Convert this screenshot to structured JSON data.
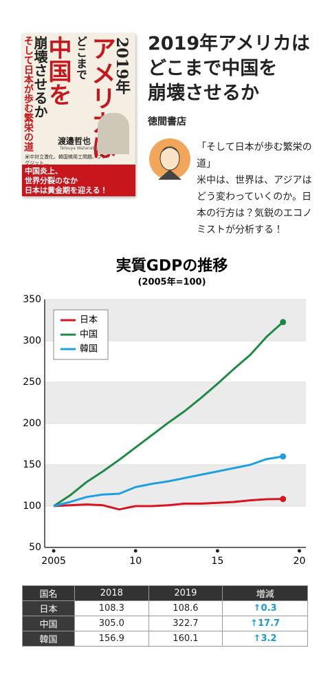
{
  "header": {
    "book": {
      "year": "2019年",
      "title_a": "アメリカは",
      "title_b": "どこまで",
      "title_c": "中国を",
      "title_d": "崩壊させるか",
      "subtitle": "そして日本が歩む繁栄の道",
      "author": "渡邉哲也",
      "author_en": "Tetsuya Watanabe",
      "points": "米中対立激化、韓国徴用工問題、ブレグジット…",
      "band_1": "中国炎上、",
      "band_2": "世界分裂のなか",
      "band_3": "日本は黄金期を迎える！"
    },
    "title_lines": [
      "2019年アメリカは",
      "どこまで中国を",
      "崩壊させるか"
    ],
    "publisher": "徳間書店",
    "quote_lines": [
      "「そして日本が歩む繁栄の道」",
      "米中は、世界は、アジアはどう変わっていくのか。日本の行方は？気鋭のエコノミストが分析する！"
    ]
  },
  "chart_data": {
    "type": "line",
    "title": "実質GDPの推移",
    "subtitle": "(2005年=100)",
    "x": [
      2005,
      2006,
      2007,
      2008,
      2009,
      2010,
      2011,
      2012,
      2013,
      2014,
      2015,
      2016,
      2017,
      2018,
      2019
    ],
    "series": [
      {
        "name": "日本",
        "color": "#d7141f",
        "values": [
          100,
          101,
          102,
          101,
          96,
          100,
          100,
          101,
          103,
          103,
          104,
          105,
          107,
          108.3,
          108.6
        ]
      },
      {
        "name": "中国",
        "color": "#1e8a45",
        "values": [
          100,
          113,
          129,
          142,
          156,
          171,
          186,
          201,
          215,
          231,
          248,
          266,
          283,
          305.0,
          322.7
        ]
      },
      {
        "name": "韓国",
        "color": "#1ca0e0",
        "values": [
          100,
          105,
          111,
          114,
          115,
          123,
          127,
          130,
          134,
          138,
          142,
          146,
          150,
          156.9,
          160.1
        ]
      }
    ],
    "xlim": [
      2004.45,
      2020.4
    ],
    "xticks": [
      2005,
      {
        "value": 2010,
        "label": "10"
      },
      {
        "value": 2015,
        "label": "15"
      },
      {
        "value": 2020,
        "label": "20"
      }
    ],
    "ylim": [
      50,
      350
    ],
    "yticks": [
      50,
      100,
      150,
      200,
      250,
      300,
      350
    ],
    "grid": true,
    "legend": "upper left"
  },
  "table": {
    "header": [
      "国名",
      "2018",
      "2019",
      "増減"
    ],
    "rows": [
      [
        "日本",
        "108.3",
        "108.6",
        "↑0.3"
      ],
      [
        "中国",
        "305.0",
        "322.7",
        "↑17.7"
      ],
      [
        "韓国",
        "156.9",
        "160.1",
        "↑3.2"
      ]
    ]
  }
}
